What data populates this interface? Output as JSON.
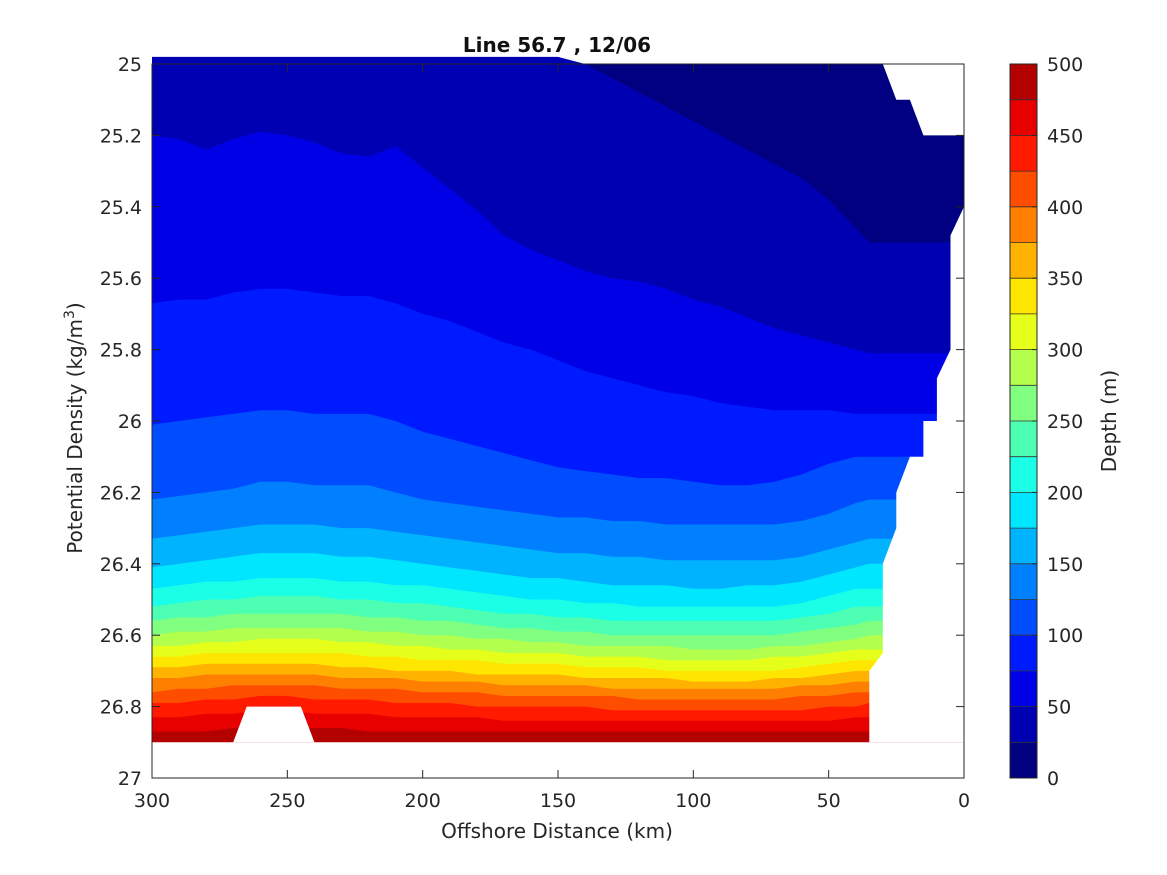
{
  "chart_data": {
    "type": "contourf",
    "title": "Line 56.7 , 12/06",
    "xlabel": "Offshore Distance (km)",
    "ylabel": "Potential Density (kg/m",
    "ylabel_sup": "3",
    "ylabel_close": ")",
    "xlim": [
      300,
      0
    ],
    "x_reversed": true,
    "ylim": [
      25,
      27
    ],
    "y_reversed": true,
    "x_ticks": [
      "300",
      "250",
      "200",
      "150",
      "100",
      "50",
      "0"
    ],
    "y_ticks": [
      "25",
      "25.2",
      "25.4",
      "25.6",
      "25.8",
      "26",
      "26.2",
      "26.4",
      "26.6",
      "26.8",
      "27"
    ],
    "colorbar": {
      "label": "Depth (m)",
      "range": [
        0,
        500
      ],
      "tick_labels": [
        "500",
        "450",
        "400",
        "350",
        "300",
        "250",
        "200",
        "150",
        "100",
        "50",
        "0"
      ],
      "levels": [
        0,
        25,
        50,
        75,
        100,
        125,
        150,
        175,
        200,
        225,
        250,
        275,
        300,
        325,
        350,
        375,
        400,
        425,
        450,
        475,
        500
      ],
      "colors": [
        "#000080",
        "#0000b3",
        "#0000e6",
        "#001aff",
        "#004dff",
        "#0080ff",
        "#00b3ff",
        "#00e6ff",
        "#1affe6",
        "#4dffb3",
        "#80ff80",
        "#b3ff4d",
        "#e6ff1a",
        "#ffe600",
        "#ffb300",
        "#ff8000",
        "#ff4d00",
        "#ff1a00",
        "#e60000",
        "#b30000"
      ]
    },
    "isolines_x": [
      300,
      290,
      280,
      270,
      260,
      250,
      240,
      230,
      220,
      210,
      200,
      190,
      180,
      170,
      160,
      150,
      140,
      130,
      120,
      110,
      100,
      90,
      80,
      70,
      60,
      50,
      40,
      35
    ],
    "isolines": [
      {
        "depth": 25,
        "y": [
          24.98,
          24.98,
          24.98,
          24.98,
          24.98,
          24.98,
          24.98,
          24.98,
          24.98,
          24.98,
          24.98,
          24.98,
          24.98,
          24.98,
          24.98,
          24.98,
          25.0,
          25.04,
          25.08,
          25.12,
          25.16,
          25.2,
          25.24,
          25.28,
          25.32,
          25.38,
          25.46,
          25.5
        ]
      },
      {
        "depth": 50,
        "y": [
          25.2,
          25.21,
          25.24,
          25.21,
          25.19,
          25.2,
          25.22,
          25.25,
          25.26,
          25.23,
          25.29,
          25.35,
          25.41,
          25.48,
          25.52,
          25.55,
          25.58,
          25.6,
          25.61,
          25.63,
          25.66,
          25.68,
          25.71,
          25.74,
          25.76,
          25.78,
          25.8,
          25.81
        ]
      },
      {
        "depth": 75,
        "y": [
          25.67,
          25.66,
          25.66,
          25.64,
          25.63,
          25.63,
          25.64,
          25.65,
          25.65,
          25.67,
          25.7,
          25.72,
          25.75,
          25.78,
          25.8,
          25.83,
          25.86,
          25.88,
          25.9,
          25.92,
          25.93,
          25.95,
          25.96,
          25.97,
          25.97,
          25.97,
          25.98,
          25.98
        ]
      },
      {
        "depth": 100,
        "y": [
          26.01,
          26.0,
          25.99,
          25.98,
          25.97,
          25.97,
          25.98,
          25.98,
          25.98,
          26.0,
          26.03,
          26.05,
          26.07,
          26.09,
          26.11,
          26.13,
          26.14,
          26.15,
          26.16,
          26.16,
          26.17,
          26.18,
          26.18,
          26.17,
          26.15,
          26.12,
          26.1,
          26.1
        ]
      },
      {
        "depth": 125,
        "y": [
          26.22,
          26.21,
          26.2,
          26.19,
          26.17,
          26.17,
          26.18,
          26.18,
          26.18,
          26.2,
          26.22,
          26.23,
          26.24,
          26.25,
          26.26,
          26.27,
          26.27,
          26.28,
          26.28,
          26.29,
          26.29,
          26.29,
          26.29,
          26.29,
          26.28,
          26.26,
          26.23,
          26.22
        ]
      },
      {
        "depth": 150,
        "y": [
          26.33,
          26.32,
          26.31,
          26.3,
          26.29,
          26.29,
          26.29,
          26.3,
          26.3,
          26.31,
          26.32,
          26.33,
          26.34,
          26.35,
          26.36,
          26.37,
          26.37,
          26.38,
          26.38,
          26.39,
          26.39,
          26.39,
          26.39,
          26.39,
          26.38,
          26.36,
          26.34,
          26.33
        ]
      },
      {
        "depth": 175,
        "y": [
          26.41,
          26.4,
          26.39,
          26.38,
          26.37,
          26.37,
          26.37,
          26.38,
          26.38,
          26.39,
          26.4,
          26.41,
          26.42,
          26.43,
          26.44,
          26.44,
          26.45,
          26.46,
          26.46,
          26.46,
          26.47,
          26.47,
          26.46,
          26.46,
          26.45,
          26.43,
          26.41,
          26.4
        ]
      },
      {
        "depth": 200,
        "y": [
          26.47,
          26.46,
          26.45,
          26.45,
          26.44,
          26.44,
          26.44,
          26.45,
          26.45,
          26.46,
          26.46,
          26.47,
          26.48,
          26.49,
          26.5,
          26.5,
          26.51,
          26.51,
          26.52,
          26.52,
          26.52,
          26.52,
          26.52,
          26.52,
          26.51,
          26.49,
          26.47,
          26.47
        ]
      },
      {
        "depth": 225,
        "y": [
          26.52,
          26.51,
          26.5,
          26.5,
          26.49,
          26.49,
          26.49,
          26.5,
          26.5,
          26.51,
          26.51,
          26.52,
          26.53,
          26.54,
          26.54,
          26.55,
          26.55,
          26.56,
          26.56,
          26.56,
          26.56,
          26.56,
          26.56,
          26.56,
          26.55,
          26.54,
          26.52,
          26.52
        ]
      },
      {
        "depth": 250,
        "y": [
          26.56,
          26.55,
          26.55,
          26.54,
          26.54,
          26.54,
          26.54,
          26.54,
          26.55,
          26.55,
          26.56,
          26.56,
          26.57,
          26.58,
          26.58,
          26.59,
          26.59,
          26.6,
          26.6,
          26.6,
          26.6,
          26.6,
          26.6,
          26.6,
          26.59,
          26.58,
          26.57,
          26.56
        ]
      },
      {
        "depth": 275,
        "y": [
          26.6,
          26.59,
          26.59,
          26.58,
          26.58,
          26.58,
          26.58,
          26.58,
          26.59,
          26.59,
          26.6,
          26.6,
          26.61,
          26.61,
          26.62,
          26.62,
          26.63,
          26.63,
          26.63,
          26.63,
          26.64,
          26.64,
          26.64,
          26.63,
          26.63,
          26.62,
          26.61,
          26.6
        ]
      },
      {
        "depth": 300,
        "y": [
          26.63,
          26.63,
          26.62,
          26.62,
          26.61,
          26.61,
          26.61,
          26.62,
          26.62,
          26.63,
          26.63,
          26.64,
          26.64,
          26.65,
          26.65,
          26.65,
          26.66,
          26.66,
          26.66,
          26.67,
          26.67,
          26.67,
          26.67,
          26.66,
          26.66,
          26.65,
          26.64,
          26.64
        ]
      },
      {
        "depth": 325,
        "y": [
          26.66,
          26.66,
          26.65,
          26.65,
          26.65,
          26.65,
          26.65,
          26.65,
          26.66,
          26.66,
          26.67,
          26.67,
          26.67,
          26.68,
          26.68,
          26.68,
          26.69,
          26.69,
          26.69,
          26.7,
          26.7,
          26.7,
          26.7,
          26.7,
          26.69,
          26.68,
          26.67,
          26.67
        ]
      },
      {
        "depth": 350,
        "y": [
          26.69,
          26.69,
          26.68,
          26.68,
          26.68,
          26.68,
          26.68,
          26.69,
          26.69,
          26.7,
          26.7,
          26.7,
          26.71,
          26.71,
          26.71,
          26.71,
          26.72,
          26.72,
          26.72,
          26.72,
          26.73,
          26.73,
          26.73,
          26.72,
          26.72,
          26.71,
          26.7,
          26.7
        ]
      },
      {
        "depth": 375,
        "y": [
          26.72,
          26.72,
          26.71,
          26.71,
          26.71,
          26.71,
          26.71,
          26.72,
          26.72,
          26.72,
          26.73,
          26.73,
          26.73,
          26.74,
          26.74,
          26.74,
          26.74,
          26.75,
          26.75,
          26.75,
          26.75,
          26.75,
          26.75,
          26.75,
          26.74,
          26.74,
          26.73,
          26.73
        ]
      },
      {
        "depth": 400,
        "y": [
          26.76,
          26.75,
          26.75,
          26.74,
          26.74,
          26.74,
          26.74,
          26.75,
          26.75,
          26.75,
          26.76,
          26.76,
          26.76,
          26.77,
          26.77,
          26.77,
          26.77,
          26.77,
          26.78,
          26.78,
          26.78,
          26.78,
          26.78,
          26.78,
          26.77,
          26.77,
          26.76,
          26.76
        ]
      },
      {
        "depth": 425,
        "y": [
          26.79,
          26.79,
          26.78,
          26.78,
          26.77,
          26.77,
          26.78,
          26.78,
          26.78,
          26.79,
          26.79,
          26.79,
          26.8,
          26.8,
          26.8,
          26.8,
          26.8,
          26.81,
          26.81,
          26.81,
          26.81,
          26.81,
          26.81,
          26.81,
          26.81,
          26.8,
          26.8,
          26.79
        ]
      },
      {
        "depth": 450,
        "y": [
          26.83,
          26.83,
          26.82,
          26.82,
          26.81,
          26.81,
          26.82,
          26.82,
          26.82,
          26.83,
          26.83,
          26.83,
          26.83,
          26.84,
          26.84,
          26.84,
          26.84,
          26.84,
          26.84,
          26.84,
          26.84,
          26.84,
          26.84,
          26.84,
          26.84,
          26.84,
          26.83,
          26.83
        ]
      },
      {
        "depth": 475,
        "y": [
          26.87,
          26.87,
          26.87,
          26.86,
          26.86,
          26.86,
          26.86,
          26.86,
          26.87,
          26.87,
          26.87,
          26.87,
          26.87,
          26.87,
          26.87,
          26.87,
          26.87,
          26.87,
          26.87,
          26.87,
          26.87,
          26.87,
          26.87,
          26.87,
          26.87,
          26.87,
          26.87,
          26.87
        ]
      }
    ],
    "no_data_regions": [
      {
        "name": "upper-right gap",
        "x": [
          30,
          25,
          20,
          15,
          15,
          0,
          0,
          30
        ],
        "y": [
          25.0,
          25.1,
          25.1,
          25.2,
          25.2,
          25.2,
          25.0,
          25.0
        ]
      },
      {
        "name": "right gap",
        "x": [
          0,
          5,
          5,
          10,
          10,
          15,
          15,
          20,
          25,
          25,
          30,
          30,
          35,
          35,
          0
        ],
        "y": [
          25.4,
          25.48,
          25.8,
          25.88,
          26.0,
          26.0,
          26.1,
          26.1,
          26.2,
          26.3,
          26.4,
          26.65,
          26.7,
          26.9,
          26.9
        ]
      },
      {
        "name": "bottom gap",
        "x": [
          300,
          0,
          0,
          300
        ],
        "y": [
          26.9,
          26.9,
          27.0,
          27.0
        ]
      },
      {
        "name": "bump gap",
        "x": [
          270,
          265,
          245,
          240
        ],
        "y": [
          26.9,
          26.8,
          26.8,
          26.9
        ]
      }
    ],
    "grid": false,
    "legend": "colorbar-right"
  }
}
